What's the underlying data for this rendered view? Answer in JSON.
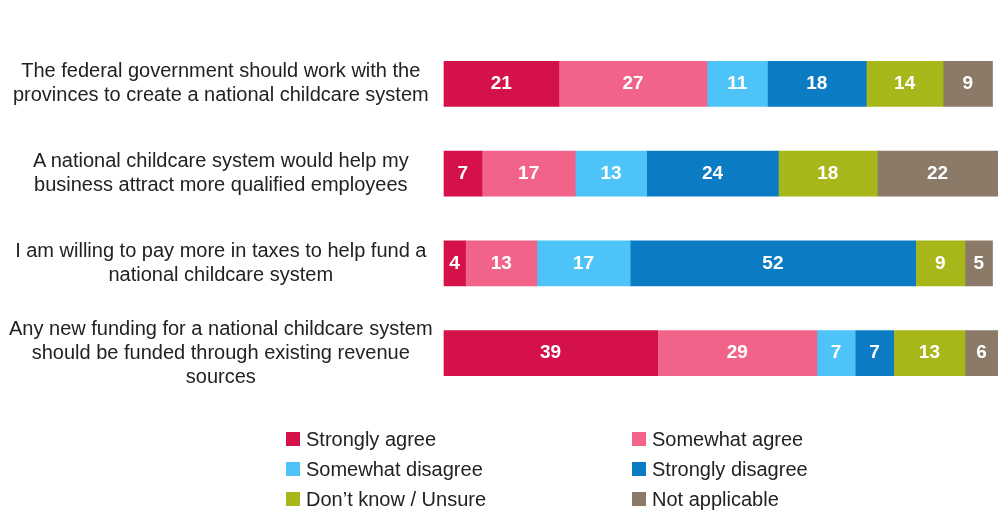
{
  "chart_data": {
    "type": "bar",
    "orientation": "horizontal",
    "stacked": true,
    "data_labels": true,
    "legend": "bottom",
    "categories": [
      "The federal government should work with the provinces to create a national childcare system",
      "A national childcare system would help my business attract more qualified employees",
      "I am willing to pay more in taxes to help fund a national childcare system",
      "Any new funding for a national childcare system should be funded through existing revenue sources"
    ],
    "series": [
      {
        "name": "Strongly agree",
        "color": "#d41149",
        "values": [
          21,
          7,
          4,
          39
        ]
      },
      {
        "name": "Somewhat agree",
        "color": "#f2638a",
        "values": [
          27,
          17,
          13,
          29
        ]
      },
      {
        "name": "Somewhat disagree",
        "color": "#4dc3f7",
        "values": [
          11,
          13,
          17,
          7
        ]
      },
      {
        "name": "Strongly disagree",
        "color": "#0b7cc4",
        "values": [
          18,
          24,
          52,
          7
        ]
      },
      {
        "name": "Don’t know / Unsure",
        "color": "#a7b619",
        "values": [
          14,
          18,
          9,
          13
        ]
      },
      {
        "name": "Not applicable",
        "color": "#8b7a68",
        "values": [
          9,
          22,
          5,
          6
        ]
      }
    ]
  }
}
